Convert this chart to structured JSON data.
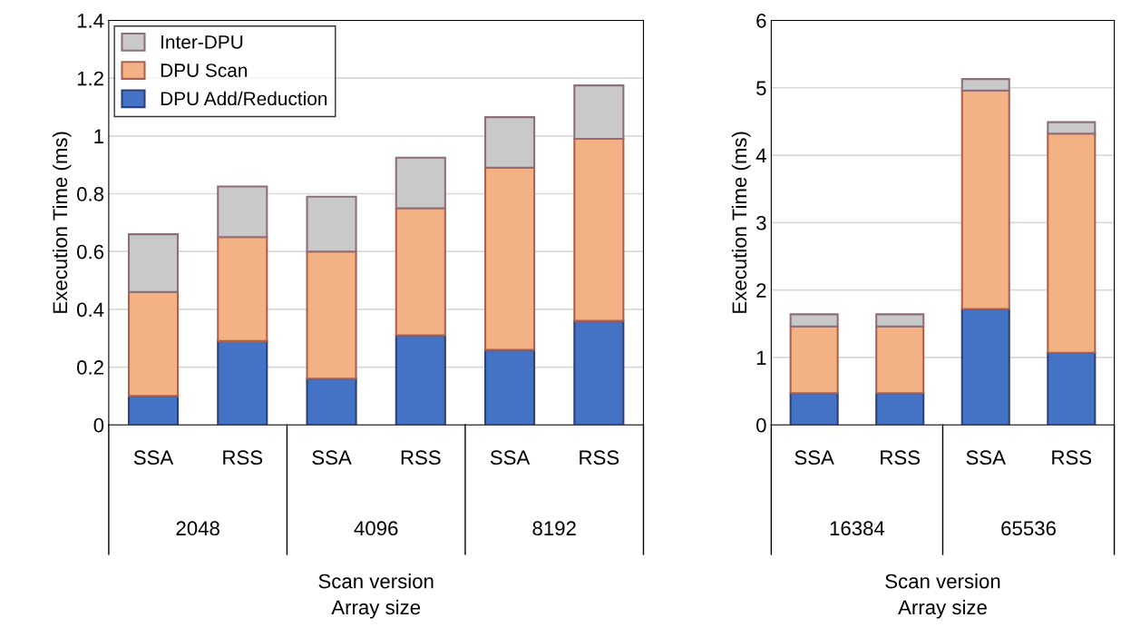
{
  "chart_data": [
    {
      "type": "bar",
      "stacked": true,
      "xlabel": "Scan version\nArray size",
      "ylabel": "Execution Time (ms)",
      "categories": [
        "SSA",
        "RSS",
        "SSA",
        "RSS",
        "SSA",
        "RSS"
      ],
      "annotations": [
        "2048",
        "4096",
        "8192"
      ],
      "ylim": [
        0,
        1.4
      ],
      "yticks": [
        0,
        0.2,
        0.4,
        0.6,
        0.8,
        1,
        1.2,
        1.4
      ],
      "grid": "y",
      "legend": "top left",
      "series": [
        {
          "name": "DPU Add/Reduction",
          "color": "#4472c4",
          "values": [
            0.1,
            0.29,
            0.16,
            0.31,
            0.26,
            0.36
          ]
        },
        {
          "name": "DPU Scan",
          "color": "#f4b183",
          "values": [
            0.36,
            0.36,
            0.44,
            0.44,
            0.63,
            0.63
          ]
        },
        {
          "name": "Inter-DPU",
          "color": "#c9c9c9",
          "values": [
            0.2,
            0.175,
            0.19,
            0.175,
            0.175,
            0.185
          ]
        }
      ]
    },
    {
      "type": "bar",
      "stacked": true,
      "xlabel": "Scan version\nArray size",
      "ylabel": "Execution Time (ms)",
      "categories": [
        "SSA",
        "RSS",
        "SSA",
        "RSS"
      ],
      "annotations": [
        "16384",
        "65536"
      ],
      "ylim": [
        0,
        6
      ],
      "yticks": [
        0,
        1,
        2,
        3,
        4,
        5,
        6
      ],
      "grid": "y",
      "series": [
        {
          "color": "#4472c4",
          "values": [
            0.47,
            0.47,
            1.72,
            1.07
          ]
        },
        {
          "color": "#f4b183",
          "values": [
            0.99,
            0.99,
            3.24,
            3.25
          ]
        },
        {
          "color": "#c9c9c9",
          "values": [
            0.18,
            0.18,
            0.17,
            0.17
          ]
        }
      ]
    }
  ]
}
